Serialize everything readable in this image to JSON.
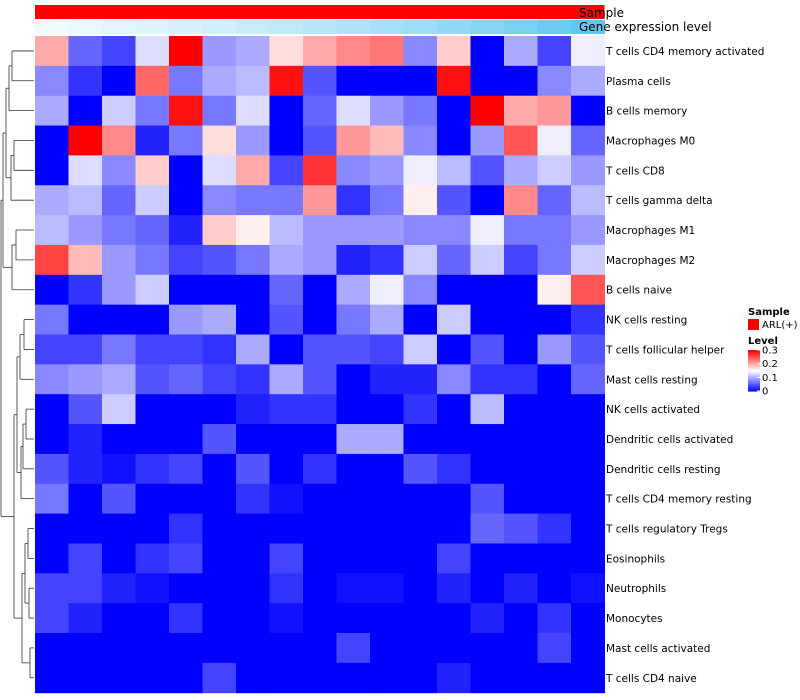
{
  "chart_data": {
    "type": "heatmap",
    "column_annotations": [
      {
        "name": "Sample",
        "color": "#ff0000"
      },
      {
        "name": "Gene expression level",
        "colors_low_high": [
          "#f2fbfd",
          "#59c3ee"
        ]
      }
    ],
    "color_scale": {
      "low": "#0000ff",
      "mid": "#ffffff",
      "high": "#ff0000",
      "min": 0,
      "mid_value": 0.15,
      "max": 0.3
    },
    "legend": {
      "sample_title": "Sample",
      "sample_entry": "ARL(+)",
      "sample_color": "#ff0000",
      "level_title": "Level",
      "ticks": [
        "0.3",
        "0.2",
        "0.1",
        "0"
      ],
      "tick_values": [
        0.3,
        0.2,
        0.1,
        0
      ]
    },
    "rows": [
      "T cells CD4 memory activated",
      "Plasma cells",
      "B cells memory",
      "Macrophages M0",
      "T cells CD8",
      "T cells gamma delta",
      "Macrophages M1",
      "Macrophages M2",
      "B cells naive",
      "NK cells resting",
      "T cells follicular helper",
      "Mast cells resting",
      "NK cells activated",
      "Dendritic cells activated",
      "Dendritic cells resting",
      "T cells CD4 memory resting",
      "T cells regulatory  Tregs",
      "Eosinophils",
      "Neutrophils",
      "Monocytes",
      "Mast cells activated",
      "T cells CD4 naive"
    ],
    "values": [
      [
        0.2,
        0.06,
        0.04,
        0.13,
        0.3,
        0.09,
        0.1,
        0.17,
        0.2,
        0.22,
        0.23,
        0.08,
        0.18,
        0.0,
        0.1,
        0.04,
        0.14
      ],
      [
        0.08,
        0.03,
        0.0,
        0.24,
        0.07,
        0.1,
        0.11,
        0.29,
        0.05,
        0.0,
        0.0,
        0.0,
        0.29,
        0.0,
        0.0,
        0.08,
        0.1
      ],
      [
        0.1,
        0.0,
        0.12,
        0.07,
        0.29,
        0.07,
        0.13,
        0.0,
        0.06,
        0.13,
        0.09,
        0.07,
        0.0,
        0.3,
        0.2,
        0.21,
        0.0
      ],
      [
        0.0,
        0.3,
        0.22,
        0.02,
        0.07,
        0.17,
        0.09,
        0.0,
        0.05,
        0.21,
        0.19,
        0.08,
        0.0,
        0.09,
        0.25,
        0.14,
        0.06
      ],
      [
        0.0,
        0.13,
        0.08,
        0.18,
        0.0,
        0.13,
        0.2,
        0.04,
        0.27,
        0.08,
        0.09,
        0.14,
        0.11,
        0.05,
        0.1,
        0.12,
        0.09
      ],
      [
        0.1,
        0.11,
        0.06,
        0.12,
        0.0,
        0.08,
        0.07,
        0.07,
        0.21,
        0.03,
        0.07,
        0.16,
        0.05,
        0.0,
        0.22,
        0.06,
        0.11
      ],
      [
        0.11,
        0.09,
        0.07,
        0.06,
        0.02,
        0.18,
        0.16,
        0.11,
        0.09,
        0.09,
        0.09,
        0.08,
        0.08,
        0.14,
        0.07,
        0.07,
        0.09
      ],
      [
        0.26,
        0.19,
        0.09,
        0.07,
        0.04,
        0.05,
        0.07,
        0.1,
        0.09,
        0.02,
        0.03,
        0.12,
        0.06,
        0.12,
        0.04,
        0.07,
        0.12
      ],
      [
        0.0,
        0.03,
        0.09,
        0.12,
        0.0,
        0.0,
        0.0,
        0.06,
        0.0,
        0.1,
        0.14,
        0.08,
        0.0,
        0.0,
        0.0,
        0.16,
        0.25
      ],
      [
        0.07,
        0.0,
        0.0,
        0.0,
        0.09,
        0.1,
        0.0,
        0.05,
        0.0,
        0.07,
        0.1,
        0.0,
        0.12,
        0.0,
        0.0,
        0.0,
        0.03
      ],
      [
        0.04,
        0.04,
        0.07,
        0.04,
        0.04,
        0.03,
        0.1,
        0.0,
        0.05,
        0.05,
        0.04,
        0.12,
        0.0,
        0.05,
        0.0,
        0.09,
        0.05
      ],
      [
        0.08,
        0.09,
        0.1,
        0.05,
        0.06,
        0.04,
        0.03,
        0.1,
        0.05,
        0.0,
        0.02,
        0.02,
        0.08,
        0.03,
        0.03,
        0.0,
        0.06
      ],
      [
        0.0,
        0.05,
        0.12,
        0.0,
        0.0,
        0.0,
        0.02,
        0.03,
        0.03,
        0.0,
        0.0,
        0.03,
        0.0,
        0.11,
        0.0,
        0.0,
        0.0
      ],
      [
        0.0,
        0.02,
        0.0,
        0.0,
        0.0,
        0.05,
        0.0,
        0.0,
        0.0,
        0.1,
        0.1,
        0.0,
        0.0,
        0.0,
        0.0,
        0.0,
        0.0
      ],
      [
        0.05,
        0.02,
        0.01,
        0.03,
        0.04,
        0.0,
        0.05,
        0.0,
        0.03,
        0.0,
        0.0,
        0.05,
        0.03,
        0.0,
        0.0,
        0.0,
        0.0
      ],
      [
        0.07,
        0.0,
        0.05,
        0.0,
        0.0,
        0.0,
        0.03,
        0.01,
        0.0,
        0.0,
        0.0,
        0.0,
        0.0,
        0.05,
        0.0,
        0.0,
        0.0
      ],
      [
        0.0,
        0.0,
        0.0,
        0.0,
        0.03,
        0.0,
        0.0,
        0.0,
        0.0,
        0.0,
        0.0,
        0.0,
        0.0,
        0.06,
        0.05,
        0.03,
        0.0
      ],
      [
        0.0,
        0.04,
        0.0,
        0.03,
        0.04,
        0.0,
        0.0,
        0.04,
        0.0,
        0.0,
        0.0,
        0.0,
        0.04,
        0.0,
        0.0,
        0.0,
        0.0
      ],
      [
        0.04,
        0.04,
        0.02,
        0.01,
        0.0,
        0.0,
        0.0,
        0.03,
        0.0,
        0.01,
        0.01,
        0.0,
        0.02,
        0.0,
        0.02,
        0.0,
        0.01
      ],
      [
        0.04,
        0.02,
        0.0,
        0.0,
        0.03,
        0.0,
        0.0,
        0.01,
        0.0,
        0.0,
        0.0,
        0.0,
        0.0,
        0.02,
        0.0,
        0.03,
        0.0
      ],
      [
        0.0,
        0.0,
        0.0,
        0.0,
        0.0,
        0.0,
        0.0,
        0.0,
        0.0,
        0.04,
        0.0,
        0.0,
        0.0,
        0.0,
        0.0,
        0.04,
        0.0
      ],
      [
        0.0,
        0.0,
        0.0,
        0.0,
        0.0,
        0.04,
        0.0,
        0.0,
        0.0,
        0.0,
        0.0,
        0.0,
        0.02,
        0.0,
        0.0,
        0.0,
        0.0
      ]
    ],
    "gene_expression_levels": [
      0.02,
      0.06,
      0.1,
      0.14,
      0.18,
      0.22,
      0.28,
      0.33,
      0.38,
      0.43,
      0.5,
      0.56,
      0.63,
      0.7,
      0.78,
      0.86,
      0.95
    ]
  }
}
